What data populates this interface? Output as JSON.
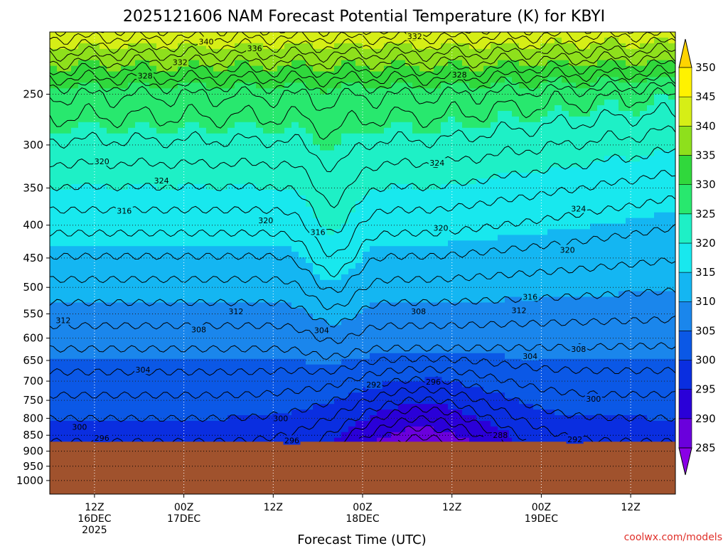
{
  "chart_data": {
    "type": "heatmap",
    "title": "2025121606 NAM Forecast Potential Temperature (K) for KBYI",
    "xlabel": "Forecast Time (UTC)",
    "ylabel": "",
    "y_scale": "log-pressure",
    "ylim": [
      1050,
      200
    ],
    "y_ticks": [
      250,
      300,
      350,
      400,
      450,
      500,
      550,
      600,
      650,
      700,
      750,
      800,
      850,
      900,
      950,
      1000
    ],
    "x_ticks": [
      {
        "hour": 6,
        "l1": "12Z",
        "l2": "16DEC",
        "l3": "2025"
      },
      {
        "hour": 18,
        "l1": "00Z",
        "l2": "17DEC",
        "l3": ""
      },
      {
        "hour": 30,
        "l1": "12Z",
        "l2": "",
        "l3": ""
      },
      {
        "hour": 42,
        "l1": "00Z",
        "l2": "18DEC",
        "l3": ""
      },
      {
        "hour": 54,
        "l1": "12Z",
        "l2": "",
        "l3": ""
      },
      {
        "hour": 66,
        "l1": "00Z",
        "l2": "19DEC",
        "l3": ""
      },
      {
        "hour": 78,
        "l1": "12Z",
        "l2": "",
        "l3": ""
      }
    ],
    "xlim": [
      0,
      84
    ],
    "grid": true,
    "colorbar": {
      "levels": [
        285,
        290,
        295,
        300,
        305,
        310,
        315,
        320,
        325,
        330,
        335,
        340,
        345,
        350
      ],
      "colors": [
        "#8a00e6",
        "#6a00dc",
        "#2a00d8",
        "#0a2ee0",
        "#0b58e6",
        "#1a86ec",
        "#14b6f2",
        "#18e8ee",
        "#1ef0c6",
        "#28e86e",
        "#30d83c",
        "#8ee01c",
        "#d6ee16",
        "#fff200",
        "#ffd400"
      ]
    },
    "contour_interval_K": 2,
    "contour_labels": [
      {
        "value": "340",
        "hour": 21.0,
        "p": 207
      },
      {
        "value": "336",
        "hour": 27.5,
        "p": 212
      },
      {
        "value": "332",
        "hour": 17.5,
        "p": 223
      },
      {
        "value": "332",
        "hour": 49.0,
        "p": 203
      },
      {
        "value": "328",
        "hour": 12.8,
        "p": 234
      },
      {
        "value": "328",
        "hour": 55.0,
        "p": 233
      },
      {
        "value": "324",
        "hour": 52.0,
        "p": 320
      },
      {
        "value": "324",
        "hour": 15.0,
        "p": 341
      },
      {
        "value": "324",
        "hour": 71.0,
        "p": 377
      },
      {
        "value": "320",
        "hour": 7.0,
        "p": 318
      },
      {
        "value": "320",
        "hour": 29.0,
        "p": 393
      },
      {
        "value": "320",
        "hour": 52.5,
        "p": 404
      },
      {
        "value": "320",
        "hour": 69.5,
        "p": 437
      },
      {
        "value": "316",
        "hour": 10.0,
        "p": 380
      },
      {
        "value": "316",
        "hour": 36.0,
        "p": 410
      },
      {
        "value": "316",
        "hour": 64.5,
        "p": 517
      },
      {
        "value": "312",
        "hour": 1.8,
        "p": 563
      },
      {
        "value": "312",
        "hour": 25.0,
        "p": 545
      },
      {
        "value": "312",
        "hour": 63.0,
        "p": 543
      },
      {
        "value": "308",
        "hour": 20.0,
        "p": 582
      },
      {
        "value": "308",
        "hour": 49.5,
        "p": 545
      },
      {
        "value": "308",
        "hour": 71.0,
        "p": 624
      },
      {
        "value": "304",
        "hour": 12.5,
        "p": 672
      },
      {
        "value": "304",
        "hour": 36.5,
        "p": 583
      },
      {
        "value": "304",
        "hour": 64.5,
        "p": 640
      },
      {
        "value": "300",
        "hour": 4.0,
        "p": 825
      },
      {
        "value": "300",
        "hour": 31.0,
        "p": 800
      },
      {
        "value": "300",
        "hour": 73.0,
        "p": 746
      },
      {
        "value": "296",
        "hour": 7.0,
        "p": 858
      },
      {
        "value": "296",
        "hour": 32.5,
        "p": 866
      },
      {
        "value": "296",
        "hour": 51.5,
        "p": 702
      },
      {
        "value": "292",
        "hour": 43.5,
        "p": 709
      },
      {
        "value": "292",
        "hour": 70.5,
        "p": 863
      },
      {
        "value": "288",
        "hour": 60.5,
        "p": 850
      }
    ],
    "terrain": {
      "surface_pressure_hPa": 870,
      "color": "#a0522d"
    }
  },
  "credit": "coolwx.com/models",
  "colors": {
    "grid": "#ffffff",
    "credit": "#e0302a",
    "terrain": "#a0522d"
  }
}
